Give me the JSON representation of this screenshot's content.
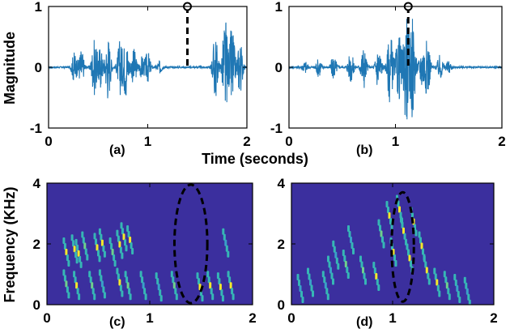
{
  "chart_data": [
    {
      "panel": "(a)",
      "type": "line",
      "ylabel": "Magnitude",
      "xlim": [
        0,
        2
      ],
      "ylim": [
        -1,
        1
      ],
      "xticks": [
        "0",
        "1",
        "2"
      ],
      "yticks": [
        "-1",
        "0",
        "1"
      ],
      "color": "#1f77b4",
      "marker_x": 1.4,
      "marker_y": 1,
      "bursts": [
        {
          "x": 0.26,
          "amp": 0.25
        },
        {
          "x": 0.33,
          "amp": 0.3
        },
        {
          "x": 0.46,
          "amp": 0.45
        },
        {
          "x": 0.52,
          "amp": 0.35
        },
        {
          "x": 0.6,
          "amp": 0.55
        },
        {
          "x": 0.72,
          "amp": 0.45
        },
        {
          "x": 0.78,
          "amp": 0.5
        },
        {
          "x": 0.86,
          "amp": 0.3
        },
        {
          "x": 0.94,
          "amp": 0.18
        },
        {
          "x": 1.0,
          "amp": 0.25
        },
        {
          "x": 1.12,
          "amp": 0.1
        },
        {
          "x": 1.68,
          "amp": 0.55
        },
        {
          "x": 1.78,
          "amp": 0.85
        },
        {
          "x": 1.85,
          "amp": 0.7
        },
        {
          "x": 1.93,
          "amp": 0.45
        }
      ]
    },
    {
      "panel": "(b)",
      "type": "line",
      "xlim": [
        0,
        2
      ],
      "ylim": [
        -1,
        1
      ],
      "xticks": [
        "0",
        "1",
        "2"
      ],
      "yticks": [
        "-1",
        "0",
        "1"
      ],
      "color": "#1f77b4",
      "marker_x": 1.12,
      "marker_y": 1,
      "bursts": [
        {
          "x": 0.15,
          "amp": 0.1
        },
        {
          "x": 0.28,
          "amp": 0.15
        },
        {
          "x": 0.42,
          "amp": 0.2
        },
        {
          "x": 0.58,
          "amp": 0.25
        },
        {
          "x": 0.7,
          "amp": 0.35
        },
        {
          "x": 0.84,
          "amp": 0.4
        },
        {
          "x": 0.95,
          "amp": 0.6
        },
        {
          "x": 1.03,
          "amp": 0.55
        },
        {
          "x": 1.1,
          "amp": 0.9
        },
        {
          "x": 1.16,
          "amp": 0.85
        },
        {
          "x": 1.25,
          "amp": 0.35
        },
        {
          "x": 1.3,
          "amp": 0.45
        },
        {
          "x": 1.42,
          "amp": 0.2
        },
        {
          "x": 1.5,
          "amp": 0.1
        }
      ]
    },
    {
      "panel": "(c)",
      "type": "heatmap",
      "ylabel": "Frequency (KHz)",
      "xlim": [
        0,
        2
      ],
      "ylim": [
        0,
        4
      ],
      "xticks": [
        "0",
        "1",
        "2"
      ],
      "yticks": [
        "0",
        "2",
        "4"
      ],
      "background": "#3b2f9e",
      "highlight_center": [
        1.4,
        2.0
      ],
      "highlight_radius": [
        0.16,
        1.95
      ],
      "streaks": [
        {
          "x": 0.2,
          "y": 1.6,
          "intensity": 0.8
        },
        {
          "x": 0.28,
          "y": 1.7,
          "intensity": 0.9
        },
        {
          "x": 0.32,
          "y": 1.55,
          "intensity": 0.9
        },
        {
          "x": 0.38,
          "y": 1.8,
          "intensity": 0.7
        },
        {
          "x": 0.5,
          "y": 1.75,
          "intensity": 0.9
        },
        {
          "x": 0.55,
          "y": 1.9,
          "intensity": 1.0
        },
        {
          "x": 0.65,
          "y": 1.6,
          "intensity": 0.7
        },
        {
          "x": 0.72,
          "y": 1.85,
          "intensity": 0.9
        },
        {
          "x": 0.76,
          "y": 2.1,
          "intensity": 1.0
        },
        {
          "x": 0.82,
          "y": 2.0,
          "intensity": 0.8
        },
        {
          "x": 0.2,
          "y": 0.55,
          "intensity": 0.7
        },
        {
          "x": 0.3,
          "y": 0.5,
          "intensity": 0.8
        },
        {
          "x": 0.45,
          "y": 0.5,
          "intensity": 0.7
        },
        {
          "x": 0.55,
          "y": 0.55,
          "intensity": 0.6
        },
        {
          "x": 0.72,
          "y": 0.6,
          "intensity": 0.8
        },
        {
          "x": 0.8,
          "y": 0.5,
          "intensity": 0.7
        },
        {
          "x": 0.95,
          "y": 0.5,
          "intensity": 0.6
        },
        {
          "x": 1.1,
          "y": 0.45,
          "intensity": 0.6
        },
        {
          "x": 1.25,
          "y": 0.5,
          "intensity": 0.7
        },
        {
          "x": 1.5,
          "y": 0.45,
          "intensity": 1.0
        },
        {
          "x": 1.6,
          "y": 0.5,
          "intensity": 1.0
        },
        {
          "x": 1.7,
          "y": 0.45,
          "intensity": 0.9
        },
        {
          "x": 1.8,
          "y": 0.5,
          "intensity": 1.0
        },
        {
          "x": 1.75,
          "y": 1.9,
          "intensity": 0.6
        }
      ]
    },
    {
      "panel": "(d)",
      "type": "heatmap",
      "xlim": [
        0,
        2
      ],
      "ylim": [
        0,
        4
      ],
      "xticks": [
        "0",
        "1",
        "2"
      ],
      "yticks": [
        "0",
        "2",
        "4"
      ],
      "background": "#3b2f9e",
      "highlight_center": [
        1.1,
        1.9
      ],
      "highlight_radius": [
        0.11,
        1.8
      ],
      "streaks": [
        {
          "x": 0.1,
          "y": 0.4,
          "intensity": 0.5
        },
        {
          "x": 0.2,
          "y": 0.6,
          "intensity": 0.6
        },
        {
          "x": 0.35,
          "y": 0.5,
          "intensity": 0.6
        },
        {
          "x": 0.4,
          "y": 1.0,
          "intensity": 0.6
        },
        {
          "x": 0.45,
          "y": 1.5,
          "intensity": 0.6
        },
        {
          "x": 0.55,
          "y": 1.2,
          "intensity": 0.7
        },
        {
          "x": 0.6,
          "y": 2.0,
          "intensity": 0.5
        },
        {
          "x": 0.72,
          "y": 1.0,
          "intensity": 0.7
        },
        {
          "x": 0.85,
          "y": 0.8,
          "intensity": 0.8
        },
        {
          "x": 0.9,
          "y": 2.2,
          "intensity": 0.7
        },
        {
          "x": 0.98,
          "y": 2.8,
          "intensity": 0.9
        },
        {
          "x": 1.02,
          "y": 1.6,
          "intensity": 1.0
        },
        {
          "x": 1.08,
          "y": 3.0,
          "intensity": 1.0
        },
        {
          "x": 1.12,
          "y": 2.3,
          "intensity": 1.0
        },
        {
          "x": 1.18,
          "y": 1.4,
          "intensity": 0.9
        },
        {
          "x": 1.22,
          "y": 2.6,
          "intensity": 0.9
        },
        {
          "x": 1.3,
          "y": 1.8,
          "intensity": 0.9
        },
        {
          "x": 1.35,
          "y": 1.0,
          "intensity": 0.8
        },
        {
          "x": 1.45,
          "y": 0.6,
          "intensity": 0.8
        },
        {
          "x": 1.55,
          "y": 0.5,
          "intensity": 0.7
        },
        {
          "x": 1.65,
          "y": 0.4,
          "intensity": 0.6
        },
        {
          "x": 1.75,
          "y": 0.3,
          "intensity": 0.5
        }
      ]
    }
  ],
  "labels": {
    "xlabel_top": "Time (seconds)",
    "ylabel_top": "Magnitude",
    "ylabel_bottom": "Frequency (KHz)"
  }
}
